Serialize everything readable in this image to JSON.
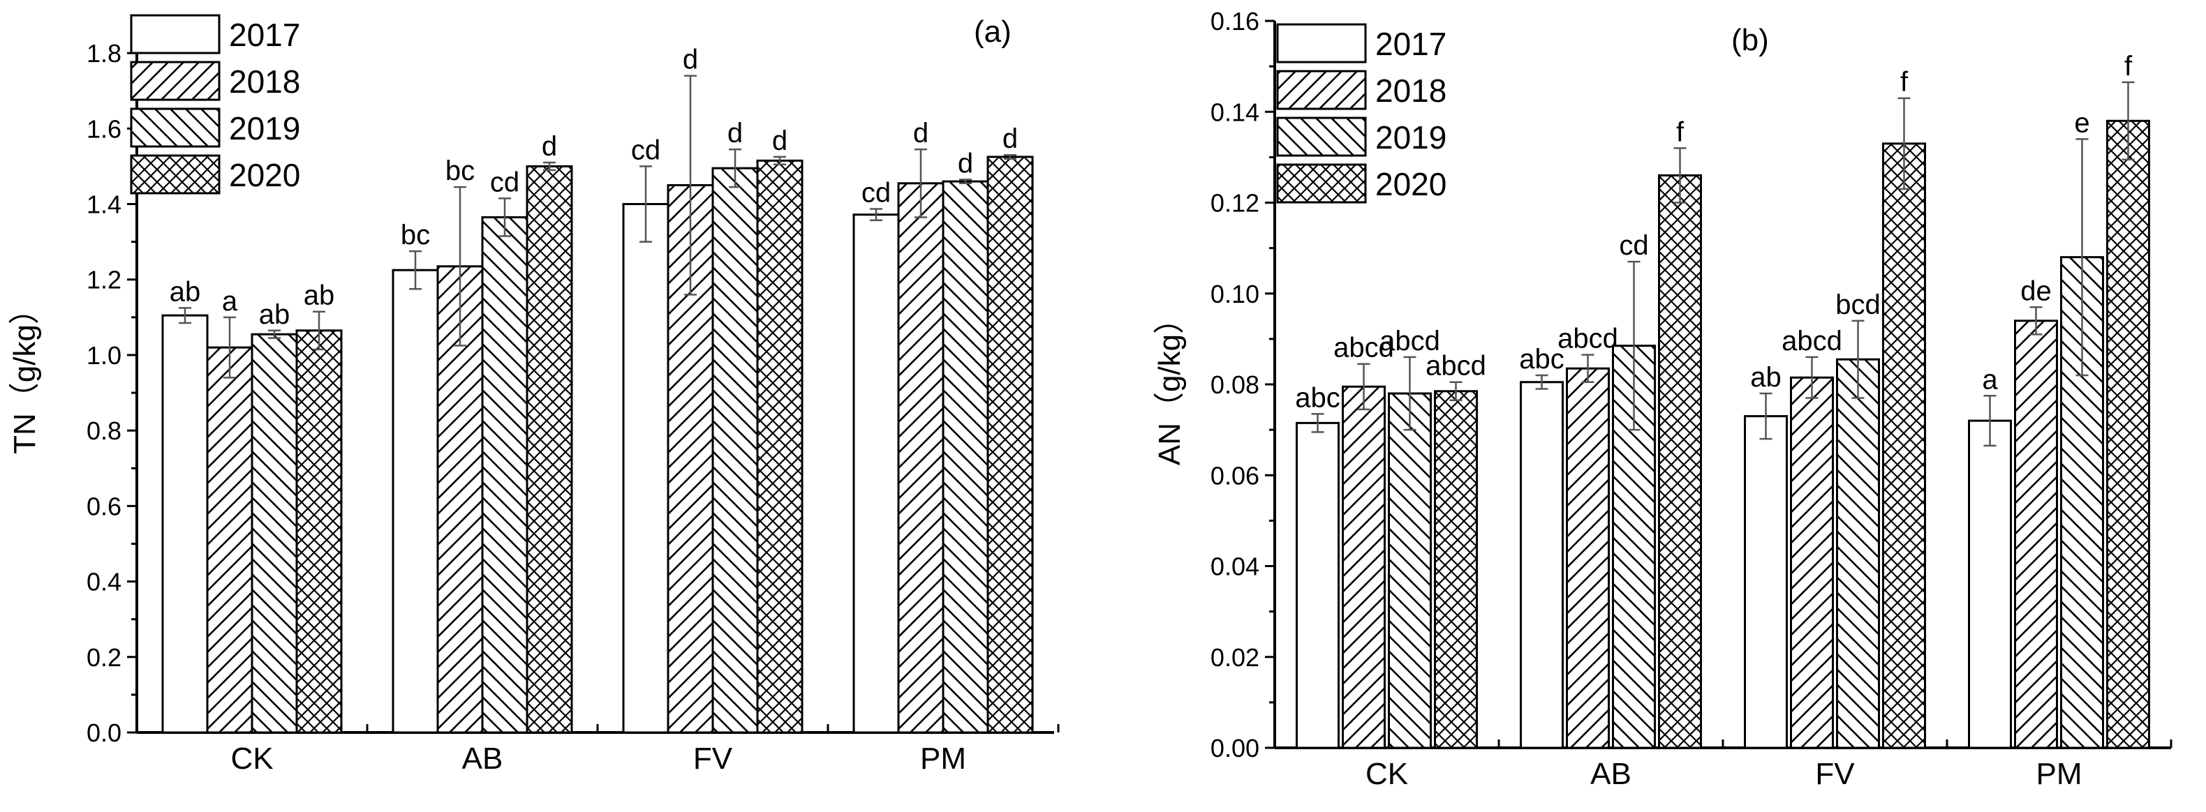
{
  "chart_data": [
    {
      "type": "bar",
      "panel": "(a)",
      "ylabel": "TN（g/kg）",
      "xlabel": "",
      "categories": [
        "CK",
        "AB",
        "FV",
        "PM"
      ],
      "ylim": [
        0,
        1.9
      ],
      "yticks": [
        0.0,
        0.2,
        0.4,
        0.6,
        0.8,
        1.0,
        1.2,
        1.4,
        1.6,
        1.8
      ],
      "yticklabels": [
        "0.0",
        "0.2",
        "0.4",
        "0.6",
        "0.8",
        "1.0",
        "1.2",
        "1.4",
        "1.6",
        "1.8"
      ],
      "legend": [
        "2017",
        "2018",
        "2019",
        "2020"
      ],
      "legend_position": "top-left",
      "series": [
        {
          "name": "2017",
          "pattern": "none",
          "values": [
            1.105,
            1.225,
            1.4,
            1.372
          ],
          "errors": [
            0.02,
            0.05,
            0.1,
            0.015
          ],
          "labels": [
            "ab",
            "bc",
            "cd",
            "cd"
          ]
        },
        {
          "name": "2018",
          "pattern": "hatch-right",
          "values": [
            1.02,
            1.235,
            1.45,
            1.455
          ],
          "errors": [
            0.08,
            0.21,
            0.29,
            0.09
          ],
          "labels": [
            "a",
            "bc",
            "d",
            "d"
          ]
        },
        {
          "name": "2019",
          "pattern": "hatch-left",
          "values": [
            1.055,
            1.365,
            1.495,
            1.46
          ],
          "errors": [
            0.01,
            0.05,
            0.05,
            0.005
          ],
          "labels": [
            "ab",
            "cd",
            "d",
            "d"
          ]
        },
        {
          "name": "2020",
          "pattern": "crosshatch",
          "values": [
            1.065,
            1.5,
            1.515,
            1.525
          ],
          "errors": [
            0.05,
            0.01,
            0.01,
            0.005
          ],
          "labels": [
            "ab",
            "d",
            "d",
            "d"
          ]
        }
      ]
    },
    {
      "type": "bar",
      "panel": "(b)",
      "ylabel": "AN（g/kg）",
      "xlabel": "",
      "categories": [
        "CK",
        "AB",
        "FV",
        "PM"
      ],
      "ylim": [
        0,
        0.16
      ],
      "yticks": [
        0.0,
        0.02,
        0.04,
        0.06,
        0.08,
        0.1,
        0.12,
        0.14,
        0.16
      ],
      "yticklabels": [
        "0.00",
        "0.02",
        "0.04",
        "0.06",
        "0.08",
        "0.10",
        "0.12",
        "0.14",
        "0.16"
      ],
      "legend": [
        "2017",
        "2018",
        "2019",
        "2020"
      ],
      "legend_position": "top-left",
      "series": [
        {
          "name": "2017",
          "pattern": "none",
          "values": [
            0.0715,
            0.0805,
            0.073,
            0.072
          ],
          "errors": [
            0.002,
            0.0015,
            0.005,
            0.0055
          ],
          "labels": [
            "abc",
            "abc",
            "ab",
            "a"
          ]
        },
        {
          "name": "2018",
          "pattern": "hatch-right",
          "values": [
            0.0795,
            0.0835,
            0.0815,
            0.094
          ],
          "errors": [
            0.005,
            0.003,
            0.0045,
            0.003
          ],
          "labels": [
            "abcd",
            "abcd",
            "abcd",
            "de"
          ]
        },
        {
          "name": "2019",
          "pattern": "hatch-left",
          "values": [
            0.078,
            0.0885,
            0.0855,
            0.108
          ],
          "errors": [
            0.008,
            0.0185,
            0.0085,
            0.026
          ],
          "labels": [
            "abcd",
            "cd",
            "bcd",
            "e"
          ]
        },
        {
          "name": "2020",
          "pattern": "crosshatch",
          "values": [
            0.0785,
            0.126,
            0.133,
            0.138
          ],
          "errors": [
            0.002,
            0.006,
            0.01,
            0.0085
          ],
          "labels": [
            "abcd",
            "f",
            "f",
            "f"
          ]
        }
      ]
    }
  ]
}
